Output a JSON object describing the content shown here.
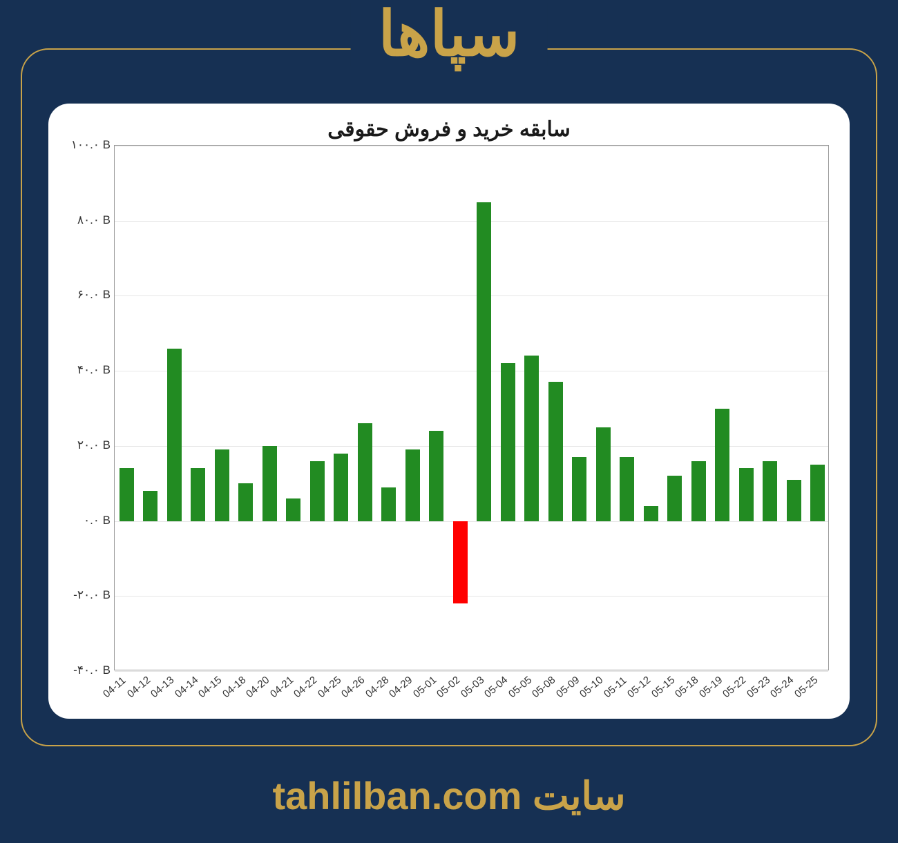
{
  "header": {
    "title": "سپاها"
  },
  "footer": {
    "site_label": "سایت",
    "site_url": "tahlilban.com"
  },
  "chart": {
    "type": "bar",
    "title": "سابقه خرید و فروش حقوقی",
    "background_color": "#ffffff",
    "positive_color": "#228b22",
    "negative_color": "#ff0000",
    "grid_color": "#e6e6e6",
    "border_color": "#999999",
    "ylim": [
      -40,
      100
    ],
    "ytick_step": 20,
    "ytick_labels": [
      "-۴۰.۰ B",
      "-۲۰.۰ B",
      "۰.۰ B",
      "۲۰.۰ B",
      "۴۰.۰ B",
      "۶۰.۰ B",
      "۸۰.۰ B",
      "۱۰۰.۰ B"
    ],
    "ytick_values": [
      -40,
      -20,
      0,
      20,
      40,
      60,
      80,
      100
    ],
    "bar_width_ratio": 0.62,
    "title_fontsize": 30,
    "label_fontsize": 17,
    "xlabel_fontsize": 15,
    "xlabel_rotation": -40,
    "categories": [
      "04-11",
      "04-12",
      "04-13",
      "04-14",
      "04-15",
      "04-18",
      "04-20",
      "04-21",
      "04-22",
      "04-25",
      "04-26",
      "04-28",
      "04-29",
      "05-01",
      "05-02",
      "05-03",
      "05-04",
      "05-05",
      "05-08",
      "05-09",
      "05-10",
      "05-11",
      "05-12",
      "05-15",
      "05-18",
      "05-19",
      "05-22",
      "05-23",
      "05-24",
      "05-25"
    ],
    "values": [
      14,
      8,
      46,
      14,
      19,
      10,
      20,
      6,
      16,
      18,
      26,
      9,
      19,
      24,
      -22,
      85,
      42,
      44,
      37,
      17,
      25,
      17,
      4,
      12,
      16,
      30,
      14,
      16,
      11,
      15
    ]
  },
  "frame": {
    "border_color": "#c9a349",
    "page_bg": "#163053"
  }
}
